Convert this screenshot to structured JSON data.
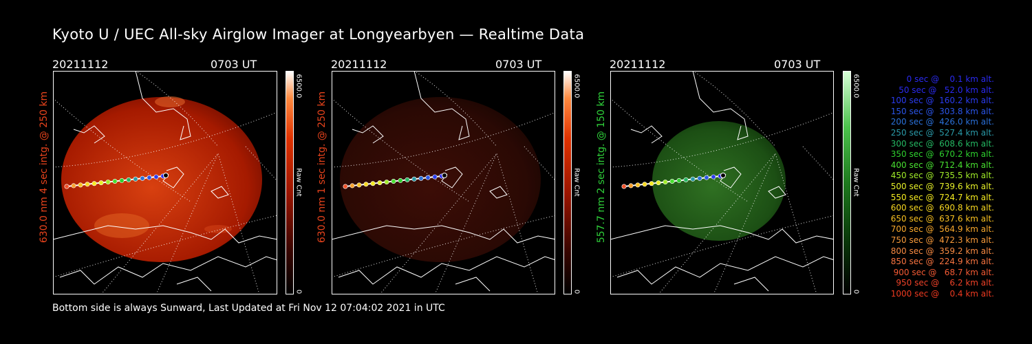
{
  "header": {
    "title": "Kyoto U / UEC All-sky Airglow Imager at Longyearbyen — Realtime Data"
  },
  "footer": {
    "text": "Bottom side is always Sunward, Last Updated at Fri Nov 12 07:04:02 2021 in UTC"
  },
  "panels": [
    {
      "date": "20211112",
      "time": "0703 UT",
      "label": "630.0 nm 4 sec intg. @ 250 km",
      "label_color": "#e8431c",
      "cbar_max": "6500.0",
      "cbar_min": "0",
      "cbar_unit": "Raw Cnt",
      "color": "red_bright",
      "cbar_gradient": "linear-gradient(to top,#000 0%,#3a0500 20%,#9a1400 45%,#e03200 70%,#ff8a40 88%,#fff 100%)"
    },
    {
      "date": "20211112",
      "time": "0703 UT",
      "label": "630.0 nm 1 sec intg. @ 250 km",
      "label_color": "#e8431c",
      "cbar_max": "6500.0",
      "cbar_min": "0",
      "cbar_unit": "Raw Cnt",
      "color": "red_dim",
      "cbar_gradient": "linear-gradient(to top,#000 0%,#3a0500 20%,#9a1400 45%,#e03200 70%,#ff8a40 88%,#fff 100%)"
    },
    {
      "date": "20211112",
      "time": "0703 UT",
      "label": "557.7 nm 2 sec intg. @ 150 km",
      "label_color": "#2fd23a",
      "cbar_max": "6500.0",
      "cbar_min": "0",
      "cbar_unit": "Raw Cnt",
      "color": "green",
      "cbar_gradient": "linear-gradient(to top,#000 0%,#0a3a0a 25%,#1e7a1e 50%,#4cc24c 75%,#d8ffd8 100%)"
    }
  ],
  "legend": [
    {
      "text": "   0 sec @    0.1 km alt.",
      "color": "#2a2af0"
    },
    {
      "text": "  50 sec @   52.0 km alt.",
      "color": "#2a2af0"
    },
    {
      "text": " 100 sec @  160.2 km alt.",
      "color": "#2a3cf0"
    },
    {
      "text": " 150 sec @  303.8 km alt.",
      "color": "#2a55e8"
    },
    {
      "text": " 200 sec @  426.0 km alt.",
      "color": "#2a70d8"
    },
    {
      "text": " 250 sec @  527.4 km alt.",
      "color": "#2a9aa8"
    },
    {
      "text": " 300 sec @  608.6 km alt.",
      "color": "#24b862"
    },
    {
      "text": " 350 sec @  670.2 km alt.",
      "color": "#2ed02e"
    },
    {
      "text": " 400 sec @  712.4 km alt.",
      "color": "#48e030"
    },
    {
      "text": " 450 sec @  735.5 km alt.",
      "color": "#a0ec28"
    },
    {
      "text": " 500 sec @  739.6 km alt.",
      "color": "#e6f028"
    },
    {
      "text": " 550 sec @  724.7 km alt.",
      "color": "#f6ec20"
    },
    {
      "text": " 600 sec @  690.8 km alt.",
      "color": "#f8d820"
    },
    {
      "text": " 650 sec @  637.6 km alt.",
      "color": "#f8c020"
    },
    {
      "text": " 700 sec @  564.9 km alt.",
      "color": "#f8a82c"
    },
    {
      "text": " 750 sec @  472.3 km alt.",
      "color": "#f89a3a"
    },
    {
      "text": " 800 sec @  359.2 km alt.",
      "color": "#f88a42"
    },
    {
      "text": " 850 sec @  224.9 km alt.",
      "color": "#f87440"
    },
    {
      "text": " 900 sec @   68.7 km alt.",
      "color": "#f45a34"
    },
    {
      "text": " 950 sec @    6.2 km alt.",
      "color": "#f04228"
    },
    {
      "text": "1000 sec @    0.4 km alt.",
      "color": "#ee3a20"
    }
  ]
}
